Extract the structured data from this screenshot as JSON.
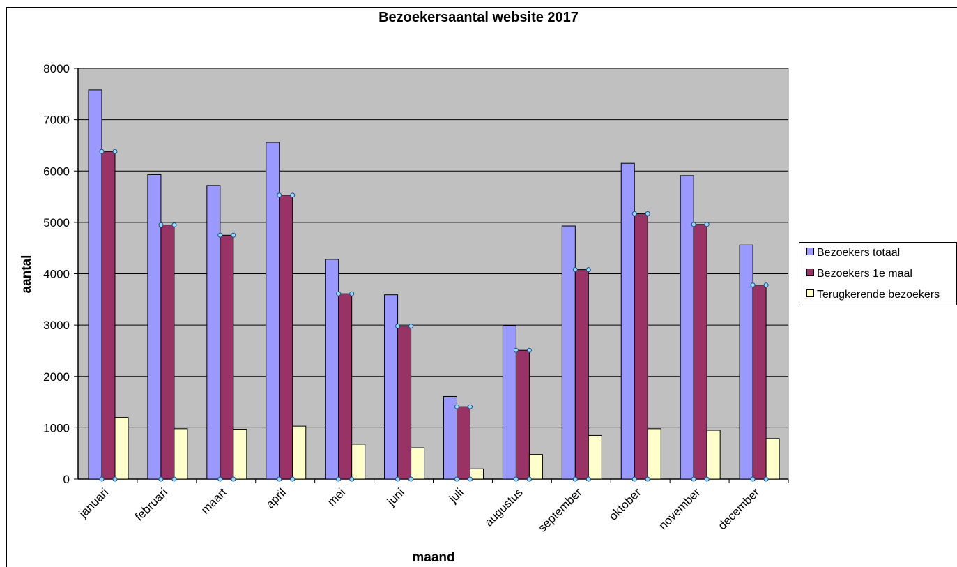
{
  "chart_data": {
    "type": "bar",
    "title": "Bezoekersaantal  website 2017",
    "xlabel": "maand",
    "ylabel": "aantal",
    "categories": [
      "januari",
      "februari",
      "maart",
      "april",
      "mei",
      "juni",
      "juli",
      "augustus",
      "september",
      "oktober",
      "november",
      "december"
    ],
    "series": [
      {
        "name": "Bezoekers totaal",
        "color": "#9999ff",
        "values": [
          7580,
          5930,
          5720,
          6560,
          4280,
          3590,
          1610,
          2990,
          4930,
          6150,
          5910,
          4560
        ]
      },
      {
        "name": "Bezoekers 1e maal",
        "color": "#993366",
        "values": [
          6380,
          4950,
          4750,
          5530,
          3610,
          2980,
          1410,
          2510,
          4080,
          5170,
          4960,
          3780
        ]
      },
      {
        "name": "Terugkerende bezoekers",
        "color": "#ffffcc",
        "values": [
          1200,
          980,
          970,
          1030,
          680,
          610,
          200,
          480,
          850,
          980,
          950,
          790
        ]
      }
    ],
    "ylim": [
      0,
      8000
    ],
    "yticks": [
      "0",
      "1000",
      "2000",
      "3000",
      "4000",
      "5000",
      "6000",
      "7000",
      "8000"
    ],
    "grid": true,
    "plot_background": "#c0c0c0",
    "legend_position": "right"
  }
}
